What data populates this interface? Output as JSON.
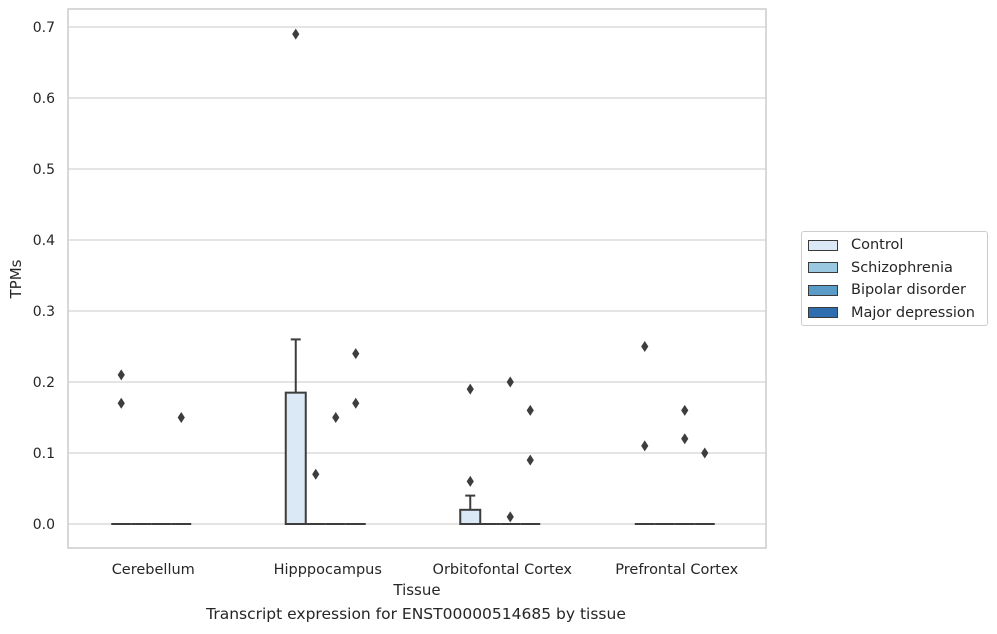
{
  "chart_data": {
    "type": "box",
    "title": "",
    "caption": "Transcript expression for ENST00000514685 by tissue",
    "xlabel": "Tissue",
    "ylabel": "TPMs",
    "ylim": [
      -0.034,
      0.725
    ],
    "yticks": [
      "0.0",
      "0.1",
      "0.2",
      "0.3",
      "0.4",
      "0.5",
      "0.6",
      "0.7"
    ],
    "grid": "horizontal",
    "legend_position": "right",
    "categories": [
      "Cerebellum",
      "Hipppocampus",
      "Orbitofontal Cortex",
      "Prefrontal Cortex"
    ],
    "series": [
      {
        "name": "Control",
        "color": "#dbe8f5",
        "boxes": [
          {
            "q1": 0,
            "median": 0,
            "q3": 0,
            "whisker_low": 0,
            "whisker_high": 0
          },
          {
            "q1": 0,
            "median": 0,
            "q3": 0.185,
            "whisker_low": 0,
            "whisker_high": 0.26
          },
          {
            "q1": 0,
            "median": 0,
            "q3": 0.02,
            "whisker_low": 0,
            "whisker_high": 0.04
          },
          {
            "q1": 0,
            "median": 0,
            "q3": 0,
            "whisker_low": 0,
            "whisker_high": 0
          }
        ],
        "outliers": [
          [
            0.21,
            0.17
          ],
          [
            0.69
          ],
          [
            0.19,
            0.06
          ],
          [
            0.25,
            0.11
          ]
        ]
      },
      {
        "name": "Schizophrenia",
        "color": "#9ac8e0",
        "boxes": [
          {
            "q1": 0,
            "median": 0,
            "q3": 0,
            "whisker_low": 0,
            "whisker_high": 0
          },
          {
            "q1": 0,
            "median": 0,
            "q3": 0,
            "whisker_low": 0,
            "whisker_high": 0
          },
          {
            "q1": 0,
            "median": 0,
            "q3": 0,
            "whisker_low": 0,
            "whisker_high": 0
          },
          {
            "q1": 0,
            "median": 0,
            "q3": 0,
            "whisker_low": 0,
            "whisker_high": 0
          }
        ],
        "outliers": [
          [],
          [
            0.07
          ],
          [],
          []
        ]
      },
      {
        "name": "Bipolar disorder",
        "color": "#5a9bc7",
        "boxes": [
          {
            "q1": 0,
            "median": 0,
            "q3": 0,
            "whisker_low": 0,
            "whisker_high": 0
          },
          {
            "q1": 0,
            "median": 0,
            "q3": 0,
            "whisker_low": 0,
            "whisker_high": 0
          },
          {
            "q1": 0,
            "median": 0,
            "q3": 0,
            "whisker_low": 0,
            "whisker_high": 0
          },
          {
            "q1": 0,
            "median": 0,
            "q3": 0,
            "whisker_low": 0,
            "whisker_high": 0
          }
        ],
        "outliers": [
          [],
          [
            0.15
          ],
          [
            0.2,
            0.01
          ],
          [
            0.16,
            0.12
          ]
        ]
      },
      {
        "name": "Major depression",
        "color": "#2e6eae",
        "boxes": [
          {
            "q1": 0,
            "median": 0,
            "q3": 0,
            "whisker_low": 0,
            "whisker_high": 0
          },
          {
            "q1": 0,
            "median": 0,
            "q3": 0,
            "whisker_low": 0,
            "whisker_high": 0
          },
          {
            "q1": 0,
            "median": 0,
            "q3": 0,
            "whisker_low": 0,
            "whisker_high": 0
          },
          {
            "q1": 0,
            "median": 0,
            "q3": 0,
            "whisker_low": 0,
            "whisker_high": 0
          }
        ],
        "outliers": [
          [
            0.15
          ],
          [
            0.24,
            0.17
          ],
          [
            0.16,
            0.09
          ],
          [
            0.1
          ]
        ]
      }
    ]
  }
}
